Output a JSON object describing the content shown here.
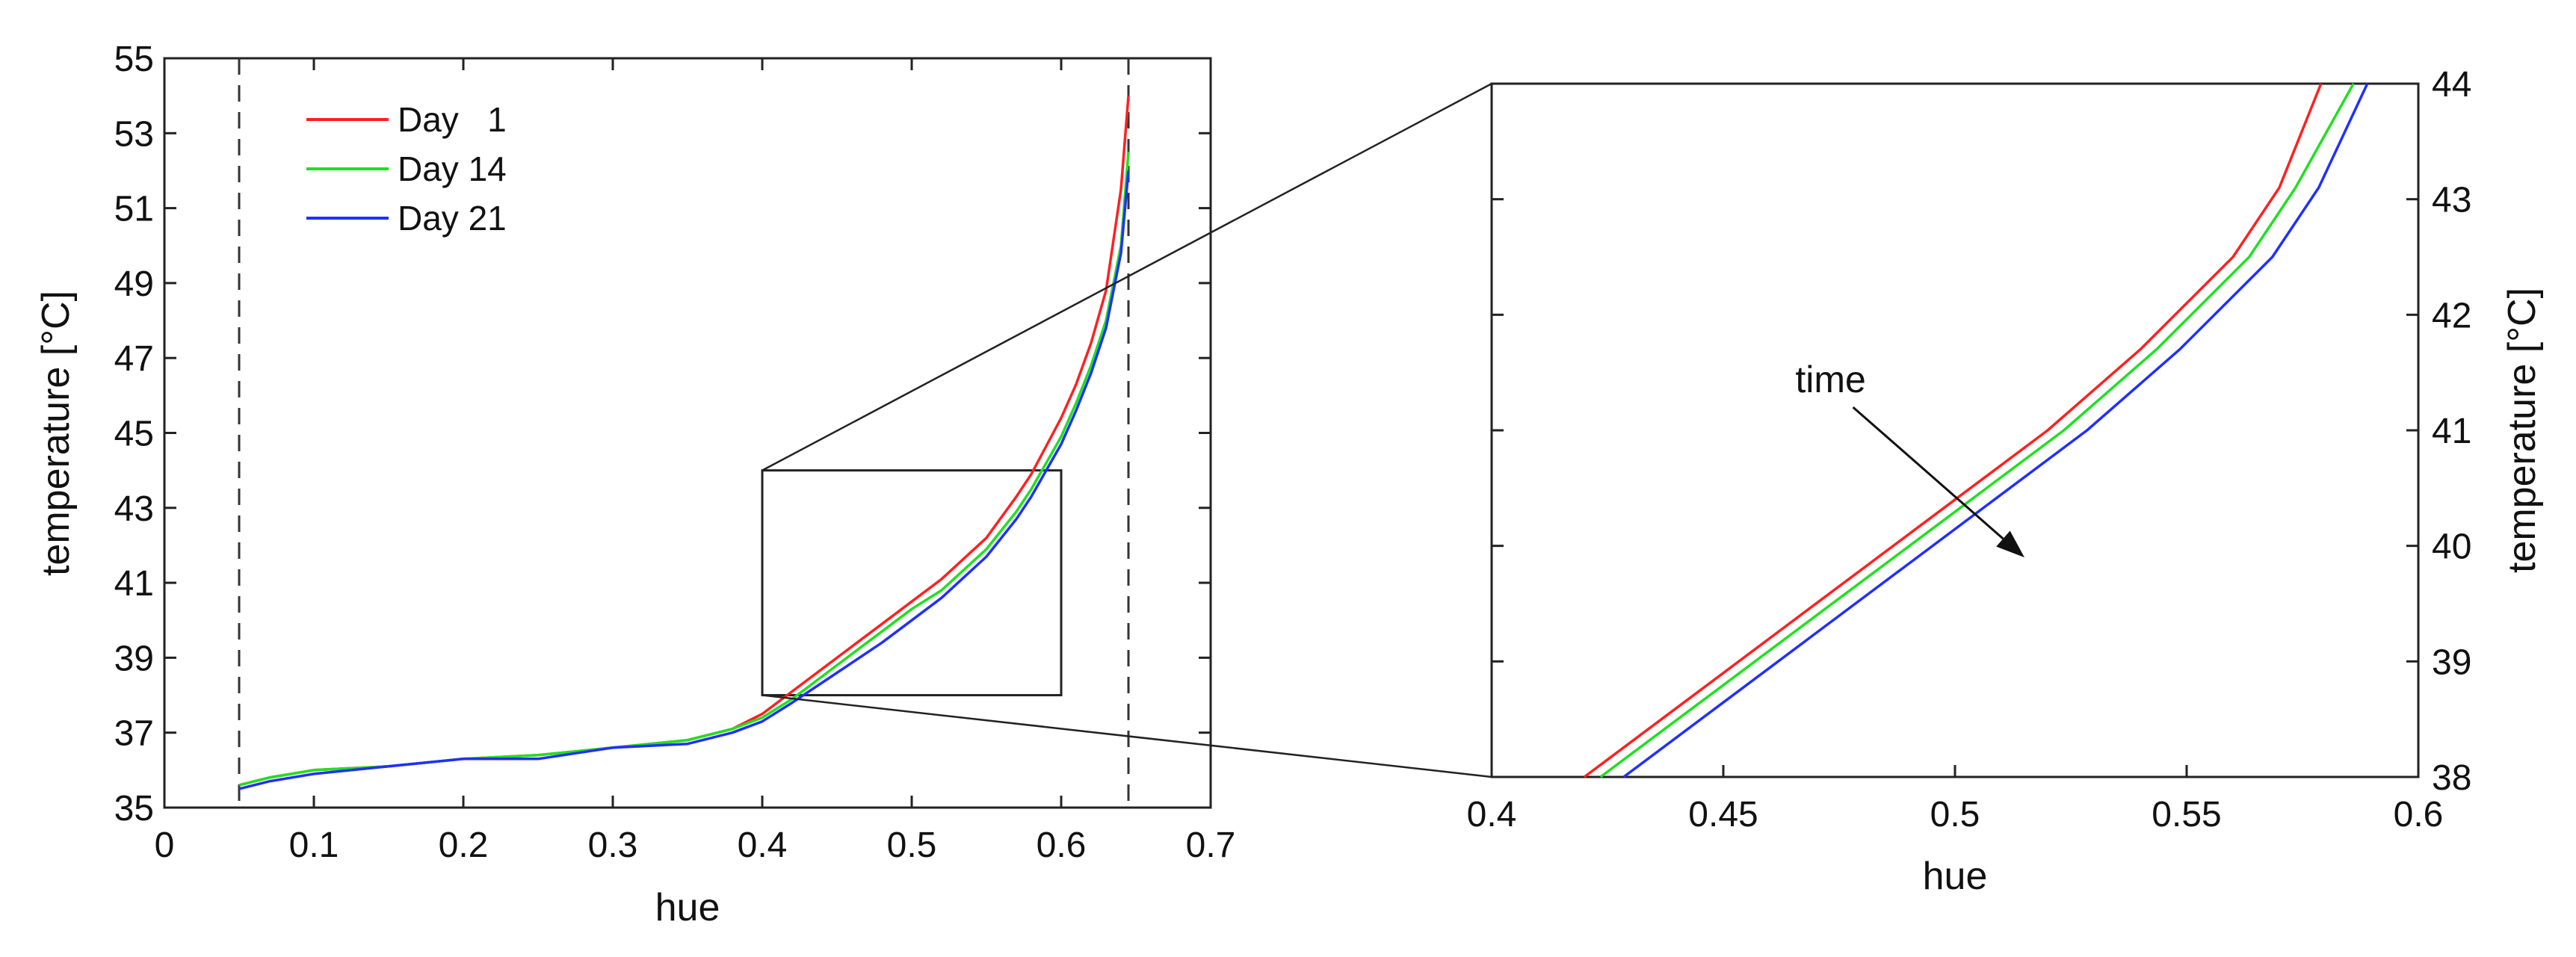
{
  "chart_data": [
    {
      "type": "line",
      "xlabel": "hue",
      "ylabel": "temperature [°C]",
      "xlim": [
        0,
        0.7
      ],
      "ylim": [
        35,
        55
      ],
      "xticks": [
        0,
        0.1,
        0.2,
        0.3,
        0.4,
        0.5,
        0.6,
        0.7
      ],
      "xtick_labels": [
        "0",
        "0.1",
        "0.2",
        "0.3",
        "0.4",
        "0.5",
        "0.6",
        "0.7"
      ],
      "yticks": [
        35,
        37,
        39,
        41,
        43,
        45,
        47,
        49,
        51,
        53,
        55
      ],
      "ytick_labels": [
        "35",
        "37",
        "39",
        "41",
        "43",
        "45",
        "47",
        "49",
        "51",
        "53",
        "55"
      ],
      "grid": false,
      "legend_position": "top-left",
      "dashed_vlines": [
        0.05,
        0.645
      ],
      "zoom_box": {
        "x": [
          0.4,
          0.6
        ],
        "y": [
          38,
          44
        ]
      },
      "series": [
        {
          "name": "Day   1",
          "color": "#ff2020",
          "x": [
            0.05,
            0.07,
            0.1,
            0.15,
            0.2,
            0.25,
            0.3,
            0.35,
            0.38,
            0.4,
            0.42,
            0.45,
            0.48,
            0.5,
            0.52,
            0.55,
            0.57,
            0.58,
            0.6,
            0.61,
            0.62,
            0.63,
            0.64,
            0.645
          ],
          "y": [
            35.6,
            35.8,
            36.0,
            36.1,
            36.3,
            36.4,
            36.6,
            36.8,
            37.1,
            37.5,
            38.1,
            39.0,
            39.9,
            40.5,
            41.1,
            42.2,
            43.3,
            43.9,
            45.4,
            46.3,
            47.4,
            48.8,
            51.5,
            54.0
          ]
        },
        {
          "name": "Day 14",
          "color": "#20e020",
          "x": [
            0.05,
            0.07,
            0.1,
            0.15,
            0.2,
            0.25,
            0.3,
            0.35,
            0.38,
            0.4,
            0.42,
            0.45,
            0.48,
            0.5,
            0.52,
            0.55,
            0.57,
            0.58,
            0.6,
            0.61,
            0.62,
            0.63,
            0.64,
            0.645
          ],
          "y": [
            35.6,
            35.8,
            36.0,
            36.1,
            36.3,
            36.4,
            36.6,
            36.8,
            37.1,
            37.4,
            37.9,
            38.8,
            39.7,
            40.3,
            40.8,
            41.9,
            42.9,
            43.5,
            44.9,
            45.8,
            46.8,
            48.0,
            50.0,
            52.5
          ]
        },
        {
          "name": "Day 21",
          "color": "#2030ff",
          "x": [
            0.05,
            0.07,
            0.1,
            0.15,
            0.2,
            0.25,
            0.3,
            0.35,
            0.38,
            0.4,
            0.42,
            0.45,
            0.48,
            0.5,
            0.52,
            0.55,
            0.57,
            0.58,
            0.6,
            0.61,
            0.62,
            0.63,
            0.64,
            0.645
          ],
          "y": [
            35.5,
            35.7,
            35.9,
            36.1,
            36.3,
            36.3,
            36.6,
            36.7,
            37.0,
            37.3,
            37.8,
            38.6,
            39.4,
            40.0,
            40.6,
            41.7,
            42.7,
            43.3,
            44.7,
            45.6,
            46.6,
            47.8,
            49.8,
            52.0
          ]
        }
      ]
    },
    {
      "type": "line",
      "xlabel": "hue",
      "ylabel": "temperature [°C]",
      "xlim": [
        0.4,
        0.6
      ],
      "ylim": [
        38,
        44
      ],
      "xticks": [
        0.4,
        0.45,
        0.5,
        0.55,
        0.6
      ],
      "xtick_labels": [
        "0.4",
        "0.45",
        "0.5",
        "0.55",
        "0.6"
      ],
      "yticks": [
        38,
        39,
        40,
        41,
        42,
        43,
        44
      ],
      "ytick_labels": [
        "38",
        "39",
        "40",
        "41",
        "42",
        "43",
        "44"
      ],
      "yaxis_side": "right",
      "grid": false,
      "annotation": {
        "text": "time",
        "arrow_from": [
          0.478,
          41.2
        ],
        "arrow_to": [
          0.515,
          39.9
        ]
      },
      "series": [
        {
          "name": "Day   1",
          "color": "#ff2020",
          "x": [
            0.42,
            0.44,
            0.46,
            0.48,
            0.5,
            0.52,
            0.54,
            0.56,
            0.57,
            0.579
          ],
          "y": [
            38.0,
            38.6,
            39.2,
            39.8,
            40.4,
            41.0,
            41.7,
            42.5,
            43.1,
            44.0
          ]
        },
        {
          "name": "Day 14",
          "color": "#20e020",
          "x": [
            0.4235,
            0.4435,
            0.4635,
            0.4835,
            0.5035,
            0.5235,
            0.5435,
            0.5635,
            0.5735,
            0.586
          ],
          "y": [
            38.0,
            38.6,
            39.2,
            39.8,
            40.4,
            41.0,
            41.7,
            42.5,
            43.1,
            44.0
          ]
        },
        {
          "name": "Day 21",
          "color": "#2030ff",
          "x": [
            0.4285,
            0.4485,
            0.4685,
            0.4885,
            0.5085,
            0.5285,
            0.5485,
            0.5685,
            0.5785,
            0.589
          ],
          "y": [
            38.0,
            38.6,
            39.2,
            39.8,
            40.4,
            41.0,
            41.7,
            42.5,
            43.1,
            44.0
          ]
        }
      ]
    }
  ]
}
